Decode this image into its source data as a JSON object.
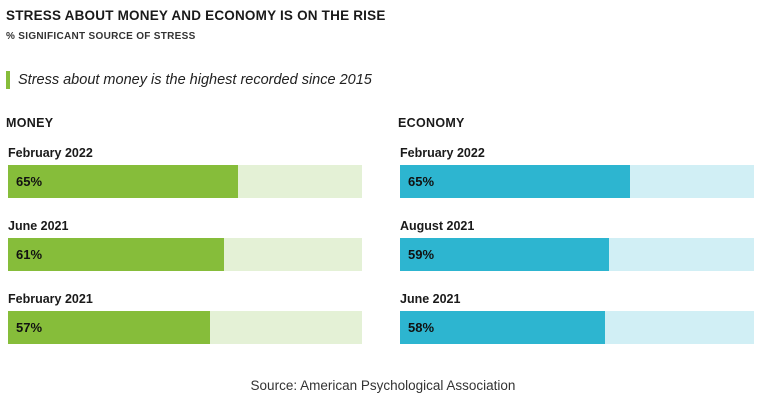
{
  "title": "STRESS ABOUT MONEY AND ECONOMY IS ON THE RISE",
  "subtitle": "% SIGNIFICANT SOURCE OF STRESS",
  "note": "Stress about money is the highest recorded since 2015",
  "source": "Source: American Psychological Association",
  "colors": {
    "money": "#86bd3a",
    "money_track": "#e4f1d6",
    "economy": "#2db5d0",
    "economy_track": "#d1eff5",
    "note_bar": "#86bd3a"
  },
  "chart_data": [
    {
      "type": "bar",
      "title": "MONEY",
      "categories": [
        "February 2022",
        "June 2021",
        "February 2021"
      ],
      "values": [
        65,
        61,
        57
      ],
      "value_labels": [
        "65%",
        "61%",
        "57%"
      ],
      "xlim": [
        0,
        100
      ],
      "grid": false
    },
    {
      "type": "bar",
      "title": "ECONOMY",
      "categories": [
        "February 2022",
        "August 2021",
        "June 2021"
      ],
      "values": [
        65,
        59,
        58
      ],
      "value_labels": [
        "65%",
        "59%",
        "58%"
      ],
      "xlim": [
        0,
        100
      ],
      "grid": false
    }
  ]
}
